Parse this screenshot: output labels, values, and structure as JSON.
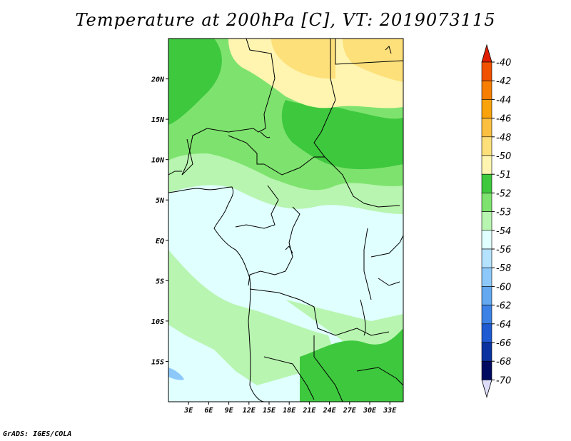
{
  "title": "Temperature at 200hPa [C], VT: 2019073115",
  "credit": "GrADS: IGES/COLA",
  "map": {
    "lat_labels": [
      {
        "text": "20N",
        "lat": 20
      },
      {
        "text": "15N",
        "lat": 15
      },
      {
        "text": "10N",
        "lat": 10
      },
      {
        "text": "5N",
        "lat": 5
      },
      {
        "text": "EQ",
        "lat": 0
      },
      {
        "text": "5S",
        "lat": -5
      },
      {
        "text": "10S",
        "lat": -10
      },
      {
        "text": "15S",
        "lat": -15
      }
    ],
    "lon_labels": [
      {
        "text": "3E",
        "lon": 3
      },
      {
        "text": "6E",
        "lon": 6
      },
      {
        "text": "9E",
        "lon": 9
      },
      {
        "text": "12E",
        "lon": 12
      },
      {
        "text": "15E",
        "lon": 15
      },
      {
        "text": "18E",
        "lon": 18
      },
      {
        "text": "21E",
        "lon": 21
      },
      {
        "text": "24E",
        "lon": 24
      },
      {
        "text": "27E",
        "lon": 27
      },
      {
        "text": "30E",
        "lon": 30
      },
      {
        "text": "33E",
        "lon": 33
      }
    ],
    "lon_range": [
      0,
      35
    ],
    "lat_range": [
      -20,
      25
    ]
  },
  "colorbar": {
    "entries": [
      {
        "label": "-40",
        "color": "#e01e00"
      },
      {
        "label": "-42",
        "color": "#f05000"
      },
      {
        "label": "-44",
        "color": "#f77e00"
      },
      {
        "label": "-46",
        "color": "#f9a20c"
      },
      {
        "label": "-48",
        "color": "#fbc040"
      },
      {
        "label": "-50",
        "color": "#fde07a"
      },
      {
        "label": "-51",
        "color": "#fff5b0"
      },
      {
        "label": "-52",
        "color": "#3ec83e"
      },
      {
        "label": "-53",
        "color": "#7ee36e"
      },
      {
        "label": "-54",
        "color": "#b8f5b0"
      },
      {
        "label": "-56",
        "color": "#e0ffff"
      },
      {
        "label": "-58",
        "color": "#b4e2ff"
      },
      {
        "label": "-60",
        "color": "#8cc8fa"
      },
      {
        "label": "-62",
        "color": "#64a8f0"
      },
      {
        "label": "-64",
        "color": "#3c82e6"
      },
      {
        "label": "-66",
        "color": "#1e5ad2"
      },
      {
        "label": "-68",
        "color": "#0a32a0"
      },
      {
        "label": "-70",
        "color": "#000a60"
      }
    ],
    "top_color": "#e01e00",
    "bottom_color": "#dcdcf8"
  }
}
